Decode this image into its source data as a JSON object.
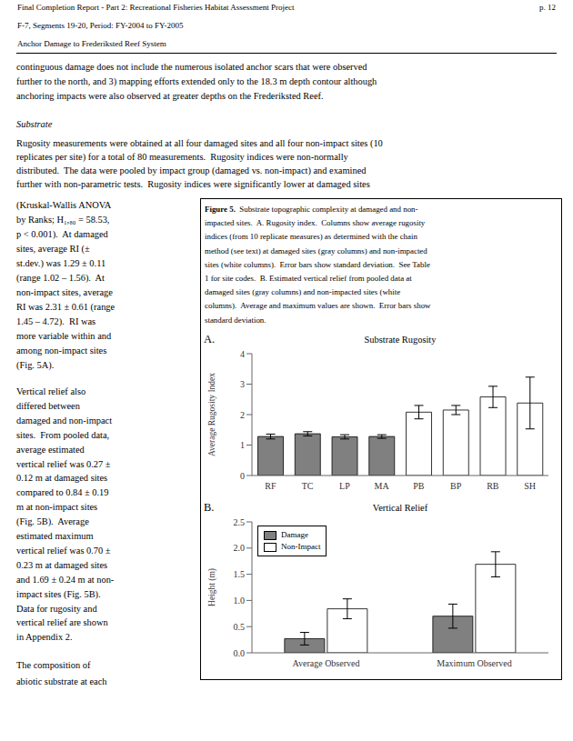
{
  "annotations": {
    "header_left": [
      "Final Completion Report - Part 2: Recreational Fisheries Habitat Assessment Project",
      "F-7, Segments 19-20, Period: FY-2004 to FY-2005",
      "Anchor Damage to Frederiksted Reef System"
    ],
    "header_right": "p. 12",
    "body": [
      "continguous damage does not include the numerous isolated anchor scars that were observed",
      "further to the north, and 3) mapping efforts extended only to the 18.3 m depth contour although",
      "anchoring impacts were also observed at greater depths on the Frederiksted Reef."
    ],
    "heading": "Substrate",
    "paragraph": [
      "Rugosity measurements were obtained at all four damaged sites and all four non-impact sites (10",
      "replicates per site) for a total of 80 measurements.  Rugosity indices were non-normally",
      "distributed.  The data were pooled by impact group (damaged vs. non-impact) and examined",
      "further with non-parametric tests.  Rugosity indices were significantly lower at damaged sites"
    ],
    "left_column": [
      [
        "(Kruskal-Wallis ANOVA",
        "by Ranks; H₁,₈₀ = 58.53,",
        "p < 0.001).  At damaged",
        "sites, average RI (±",
        "st.dev.) was 1.29 ± 0.11",
        "(range 1.02 – 1.56).  At",
        "non-impact sites, average",
        "RI was 2.31 ± 0.61 (range",
        "1.45 – 4.72).  RI was",
        "more variable within and",
        "among non-impact sites",
        "(Fig. 5A)."
      ],
      [
        "Vertical relief also",
        "differed between",
        "damaged and non-impact",
        "sites.  From pooled data,",
        "average estimated",
        "vertical relief was 0.27 ±",
        "0.12 m at damaged sites",
        "compared to 0.84 ± 0.19",
        "m at non-impact sites",
        "(Fig. 5B).  Average",
        "estimated maximum",
        "vertical relief was 0.70 ±",
        "0.23 m at damaged sites",
        "and 1.69 ± 0.24 m at non-",
        "impact sites (Fig. 5B).",
        "Data for rugosity and",
        "vertical relief are shown",
        "in Appendix 2."
      ],
      [
        "The composition of",
        "abiotic substrate at each"
      ]
    ],
    "caption_bold": "Figure 5.",
    "caption": [
      "Substrate topographic complexity at damaged and non-",
      "impacted sites.  A. Rugosity index.  Columns show average rugosity",
      "indices (from 10 replicate measures) as determined with the chain",
      "method (see text) at damaged sites (gray columns) and non-impacted",
      "sites (white columns).  Error bars show standard deviation.  See Table",
      "1 for site codes.  B. Estimated vertical relief from pooled data at",
      "damaged sites (gray columns) and non-impacted sites (white",
      "columns).  Average and maximum values are shown.  Error bars show",
      "standard deviation."
    ]
  },
  "chart_data": [
    {
      "type": "bar",
      "annotations": [
        "A."
      ],
      "title": "Substrate Rugosity",
      "y_label": "Average Rugosity Index",
      "categories": [
        "RF",
        "TC",
        "LP",
        "MA",
        "PB",
        "BP",
        "RB",
        "SH"
      ],
      "values": [
        1.28,
        1.37,
        1.27,
        1.28,
        2.08,
        2.15,
        2.58,
        2.38
      ],
      "errors": [
        0.08,
        0.07,
        0.07,
        0.06,
        0.22,
        0.15,
        0.35,
        0.85
      ],
      "colors": [
        "#808080",
        "#808080",
        "#808080",
        "#808080",
        "#ffffff",
        "#ffffff",
        "#ffffff",
        "#ffffff"
      ],
      "ylim": [
        0,
        4
      ],
      "yticks": [
        0,
        1,
        2,
        3,
        4
      ],
      "grid": false
    },
    {
      "type": "bar",
      "annotations": [
        "B."
      ],
      "title": "Vertical Relief",
      "y_label": "Height (m)",
      "categories": [
        "Average Observed",
        "Maximum Observed"
      ],
      "series": [
        {
          "name": "Damage",
          "color": "#808080",
          "values": [
            0.27,
            0.7
          ],
          "errors": [
            0.12,
            0.23
          ]
        },
        {
          "name": "Non-Impact",
          "color": "#ffffff",
          "values": [
            0.84,
            1.69
          ],
          "errors": [
            0.19,
            0.24
          ]
        }
      ],
      "ylim": [
        0,
        2.5
      ],
      "yticks": [
        {
          "value": 0,
          "label": "0.0"
        },
        0.5,
        {
          "value": 1,
          "label": "1.0"
        },
        1.5,
        {
          "value": 2,
          "label": "2.0"
        },
        2.5
      ],
      "grid": false,
      "legend": "upper left"
    }
  ]
}
